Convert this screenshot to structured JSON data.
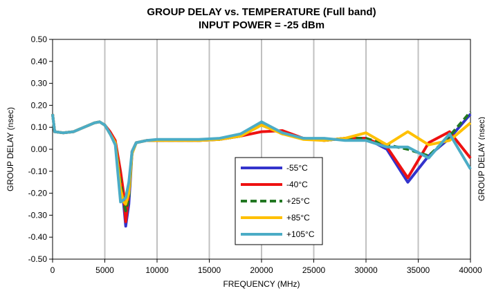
{
  "chart_data": {
    "type": "line",
    "title": "GROUP DELAY vs. TEMPERATURE (Full band)",
    "subtitle": "INPUT POWER =  -25 dBm",
    "xlabel": "FREQUENCY (MHz)",
    "ylabel": "GROUP DELAY (nsec)",
    "ylabel_right": "GROUP DELAY (nsec)",
    "xlim": [
      0,
      40000
    ],
    "ylim": [
      -0.5,
      0.5
    ],
    "x_ticks": [
      0,
      5000,
      10000,
      15000,
      20000,
      25000,
      30000,
      35000,
      40000
    ],
    "y_ticks": [
      -0.5,
      -0.4,
      -0.3,
      -0.2,
      -0.1,
      0.0,
      0.1,
      0.2,
      0.3,
      0.4,
      0.5
    ],
    "x_tick_labels": [
      "0",
      "5000",
      "10000",
      "15000",
      "20000",
      "25000",
      "30000",
      "35000",
      "40000"
    ],
    "y_tick_labels": [
      "-0.50",
      "-0.40",
      "-0.30",
      "-0.20",
      "-0.10",
      "0.00",
      "0.10",
      "0.20",
      "0.30",
      "0.40",
      "0.50"
    ],
    "grid": "vertical",
    "legend_position": "center-right",
    "series": [
      {
        "name": "-55°C",
        "color": "#3333cc",
        "dash": "solid",
        "points": [
          [
            0,
            0.16
          ],
          [
            200,
            0.08
          ],
          [
            1000,
            0.075
          ],
          [
            2000,
            0.08
          ],
          [
            3000,
            0.1
          ],
          [
            4000,
            0.12
          ],
          [
            4500,
            0.125
          ],
          [
            5000,
            0.11
          ],
          [
            5500,
            0.07
          ],
          [
            6000,
            0.03
          ],
          [
            6500,
            -0.12
          ],
          [
            6800,
            -0.25
          ],
          [
            7000,
            -0.35
          ],
          [
            7300,
            -0.25
          ],
          [
            7600,
            -0.02
          ],
          [
            8000,
            0.03
          ],
          [
            9000,
            0.04
          ],
          [
            10000,
            0.04
          ],
          [
            12000,
            0.04
          ],
          [
            14000,
            0.04
          ],
          [
            16000,
            0.045
          ],
          [
            18000,
            0.06
          ],
          [
            20000,
            0.12
          ],
          [
            22000,
            0.07
          ],
          [
            24000,
            0.05
          ],
          [
            26000,
            0.04
          ],
          [
            28000,
            0.05
          ],
          [
            30000,
            0.05
          ],
          [
            32000,
            0.0
          ],
          [
            34000,
            -0.15
          ],
          [
            36000,
            -0.03
          ],
          [
            38000,
            0.05
          ],
          [
            40000,
            0.16
          ]
        ]
      },
      {
        "name": "-40°C",
        "color": "#ee1111",
        "dash": "solid",
        "points": [
          [
            0,
            0.16
          ],
          [
            200,
            0.08
          ],
          [
            1000,
            0.075
          ],
          [
            2000,
            0.08
          ],
          [
            3000,
            0.1
          ],
          [
            4000,
            0.12
          ],
          [
            4500,
            0.125
          ],
          [
            5000,
            0.11
          ],
          [
            5500,
            0.08
          ],
          [
            6000,
            0.04
          ],
          [
            6500,
            -0.1
          ],
          [
            6800,
            -0.2
          ],
          [
            7000,
            -0.33
          ],
          [
            7300,
            -0.2
          ],
          [
            7600,
            -0.01
          ],
          [
            8000,
            0.03
          ],
          [
            9000,
            0.04
          ],
          [
            10000,
            0.04
          ],
          [
            12000,
            0.04
          ],
          [
            14000,
            0.04
          ],
          [
            16000,
            0.045
          ],
          [
            18000,
            0.06
          ],
          [
            20000,
            0.08
          ],
          [
            22000,
            0.085
          ],
          [
            24000,
            0.05
          ],
          [
            26000,
            0.04
          ],
          [
            28000,
            0.05
          ],
          [
            30000,
            0.05
          ],
          [
            32000,
            0.01
          ],
          [
            34000,
            -0.13
          ],
          [
            36000,
            0.03
          ],
          [
            38000,
            0.08
          ],
          [
            40000,
            -0.04
          ]
        ]
      },
      {
        "name": "+25°C",
        "color": "#227722",
        "dash": "dashed",
        "points": [
          [
            0,
            0.16
          ],
          [
            200,
            0.08
          ],
          [
            1000,
            0.075
          ],
          [
            2000,
            0.08
          ],
          [
            3000,
            0.1
          ],
          [
            4000,
            0.12
          ],
          [
            4500,
            0.125
          ],
          [
            5000,
            0.11
          ],
          [
            5500,
            0.07
          ],
          [
            6000,
            0.03
          ],
          [
            6500,
            -0.15
          ],
          [
            6800,
            -0.24
          ],
          [
            7000,
            -0.28
          ],
          [
            7300,
            -0.22
          ],
          [
            7600,
            -0.02
          ],
          [
            8000,
            0.03
          ],
          [
            9000,
            0.04
          ],
          [
            10000,
            0.04
          ],
          [
            12000,
            0.04
          ],
          [
            14000,
            0.04
          ],
          [
            16000,
            0.045
          ],
          [
            18000,
            0.06
          ],
          [
            20000,
            0.11
          ],
          [
            22000,
            0.07
          ],
          [
            24000,
            0.05
          ],
          [
            26000,
            0.04
          ],
          [
            28000,
            0.05
          ],
          [
            30000,
            0.05
          ],
          [
            32000,
            0.02
          ],
          [
            34000,
            0.0
          ],
          [
            36000,
            -0.03
          ],
          [
            38000,
            0.06
          ],
          [
            40000,
            0.17
          ]
        ]
      },
      {
        "name": "+85°C",
        "color": "#ffc000",
        "dash": "solid",
        "points": [
          [
            0,
            0.16
          ],
          [
            200,
            0.08
          ],
          [
            1000,
            0.075
          ],
          [
            2000,
            0.08
          ],
          [
            3000,
            0.1
          ],
          [
            4000,
            0.12
          ],
          [
            4500,
            0.125
          ],
          [
            5000,
            0.11
          ],
          [
            5500,
            0.07
          ],
          [
            6000,
            0.03
          ],
          [
            6500,
            -0.18
          ],
          [
            6800,
            -0.24
          ],
          [
            7000,
            -0.25
          ],
          [
            7300,
            -0.2
          ],
          [
            7600,
            -0.02
          ],
          [
            8000,
            0.03
          ],
          [
            9000,
            0.04
          ],
          [
            10000,
            0.04
          ],
          [
            12000,
            0.04
          ],
          [
            14000,
            0.04
          ],
          [
            16000,
            0.045
          ],
          [
            18000,
            0.06
          ],
          [
            20000,
            0.11
          ],
          [
            22000,
            0.07
          ],
          [
            24000,
            0.045
          ],
          [
            26000,
            0.04
          ],
          [
            28000,
            0.05
          ],
          [
            30000,
            0.075
          ],
          [
            32000,
            0.02
          ],
          [
            34000,
            0.08
          ],
          [
            36000,
            0.02
          ],
          [
            38000,
            0.04
          ],
          [
            40000,
            0.12
          ]
        ]
      },
      {
        "name": "+105°C",
        "color": "#4bacc6",
        "dash": "solid",
        "points": [
          [
            0,
            0.16
          ],
          [
            200,
            0.08
          ],
          [
            1000,
            0.075
          ],
          [
            2000,
            0.08
          ],
          [
            3000,
            0.1
          ],
          [
            4000,
            0.12
          ],
          [
            4500,
            0.125
          ],
          [
            5000,
            0.11
          ],
          [
            5500,
            0.07
          ],
          [
            6000,
            0.02
          ],
          [
            6500,
            -0.24
          ],
          [
            6800,
            -0.23
          ],
          [
            7000,
            -0.22
          ],
          [
            7300,
            -0.15
          ],
          [
            7600,
            -0.01
          ],
          [
            8000,
            0.03
          ],
          [
            9000,
            0.04
          ],
          [
            10000,
            0.045
          ],
          [
            12000,
            0.045
          ],
          [
            14000,
            0.045
          ],
          [
            16000,
            0.05
          ],
          [
            18000,
            0.07
          ],
          [
            20000,
            0.125
          ],
          [
            22000,
            0.075
          ],
          [
            24000,
            0.05
          ],
          [
            26000,
            0.05
          ],
          [
            28000,
            0.04
          ],
          [
            30000,
            0.04
          ],
          [
            32000,
            0.01
          ],
          [
            34000,
            0.01
          ],
          [
            36000,
            -0.04
          ],
          [
            38000,
            0.07
          ],
          [
            40000,
            -0.09
          ]
        ]
      }
    ]
  }
}
